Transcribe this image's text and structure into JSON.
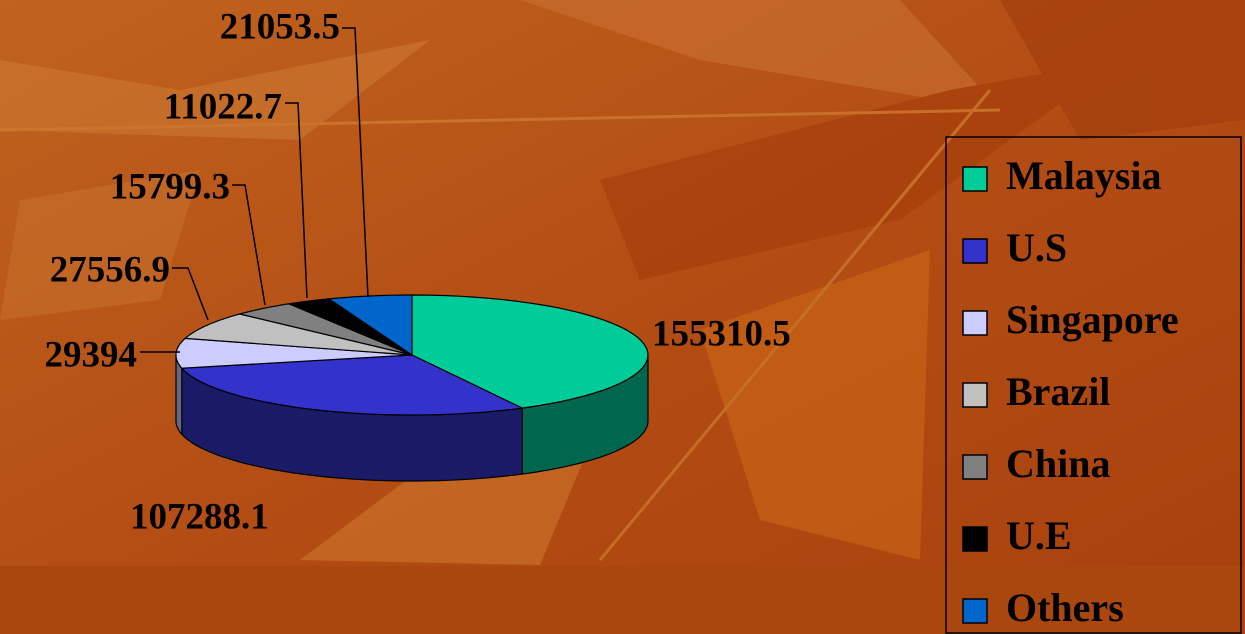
{
  "chart_data": {
    "type": "pie",
    "categories": [
      "Malaysia",
      "U.S",
      "Singapore",
      "Brazil",
      "China",
      "U.E",
      "Others"
    ],
    "values": [
      155310.5,
      107288.1,
      29394,
      27556.9,
      15799.3,
      11022.7,
      21053.5
    ],
    "colors": [
      "#00cc99",
      "#3333cc",
      "#ccccff",
      "#c0c0c0",
      "#808080",
      "#000000",
      "#0066cc"
    ],
    "legend": "right"
  }
}
